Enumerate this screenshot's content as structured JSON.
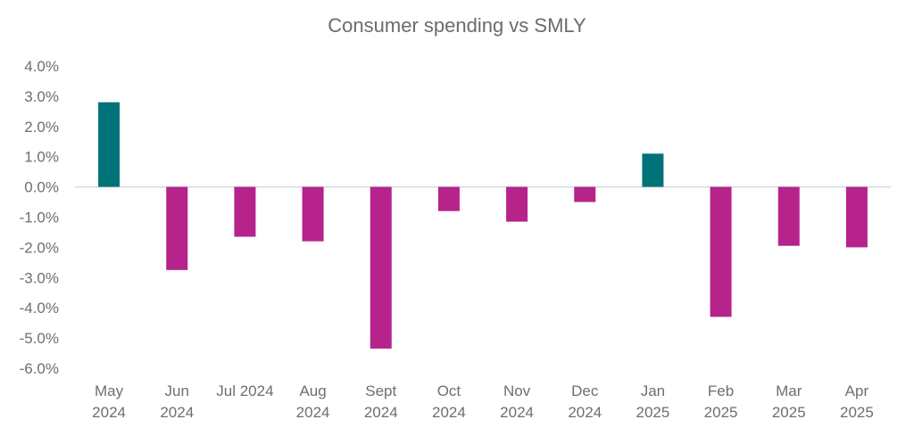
{
  "chart_data": {
    "type": "bar",
    "title": "Consumer spending vs SMLY",
    "xlabel": "",
    "ylabel": "",
    "ylim": [
      -6.0,
      4.0
    ],
    "yticks": [
      "4.0%",
      "3.0%",
      "2.0%",
      "1.0%",
      "0.0%",
      "-1.0%",
      "-2.0%",
      "-3.0%",
      "-4.0%",
      "-5.0%",
      "-6.0%"
    ],
    "ytick_values": [
      4,
      3,
      2,
      1,
      0,
      -1,
      -2,
      -3,
      -4,
      -5,
      -6
    ],
    "grid": false,
    "categories": [
      [
        "May",
        "2024"
      ],
      [
        "Jun",
        "2024"
      ],
      [
        "Jul 2024"
      ],
      [
        "Aug",
        "2024"
      ],
      [
        "Sept",
        "2024"
      ],
      [
        "Oct",
        "2024"
      ],
      [
        "Nov",
        "2024"
      ],
      [
        "Dec",
        "2024"
      ],
      [
        "Jan",
        "2025"
      ],
      [
        "Feb",
        "2025"
      ],
      [
        "Mar",
        "2025"
      ],
      [
        "Apr",
        "2025"
      ]
    ],
    "values": [
      2.8,
      -2.75,
      -1.65,
      -1.8,
      -5.35,
      -0.8,
      -1.15,
      -0.5,
      1.1,
      -4.3,
      -1.95,
      -2.0
    ],
    "colors": {
      "positive": "#007278",
      "negative": "#B5238B"
    }
  }
}
